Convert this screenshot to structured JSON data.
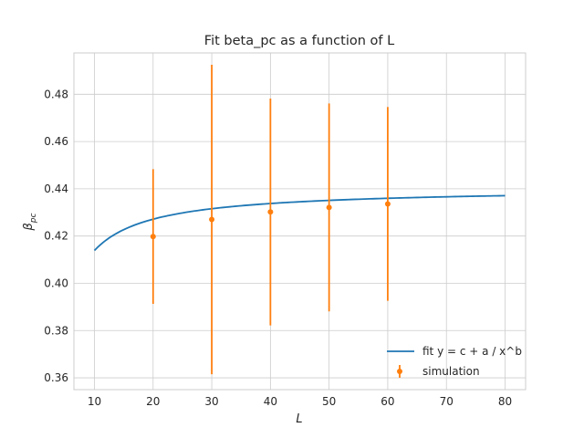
{
  "chart_data": {
    "type": "line",
    "title": "Fit beta_pc as a function of L",
    "xlabel": "L",
    "ylabel": "β",
    "ylabel_sub": "pc",
    "xlim": [
      6.5,
      83.5
    ],
    "ylim": [
      0.355,
      0.4975
    ],
    "xticks": [
      10,
      20,
      30,
      40,
      50,
      60,
      70,
      80
    ],
    "yticks": [
      0.36,
      0.38,
      0.4,
      0.42,
      0.44,
      0.46,
      0.48
    ],
    "ytick_labels": [
      "0.36",
      "0.38",
      "0.40",
      "0.42",
      "0.44",
      "0.46",
      "0.48"
    ],
    "grid": true,
    "legend_position": "lower-right",
    "colors": {
      "fit": "#1f77b4",
      "simulation": "#ff7f0e",
      "grid": "#cccccc",
      "frame": "#cccccc"
    },
    "series": [
      {
        "name": "fit y = c + a / x^b",
        "kind": "line",
        "fit_params": {
          "c": 0.4404,
          "a": -0.2652,
          "b": 1.0
        },
        "x_range": [
          10,
          80
        ]
      },
      {
        "name": "simulation",
        "kind": "errorbar",
        "x": [
          20,
          30,
          40,
          50,
          60
        ],
        "y": [
          0.4198,
          0.427,
          0.4302,
          0.4321,
          0.4336
        ],
        "yerr": [
          0.0285,
          0.0655,
          0.048,
          0.044,
          0.041
        ]
      }
    ]
  }
}
